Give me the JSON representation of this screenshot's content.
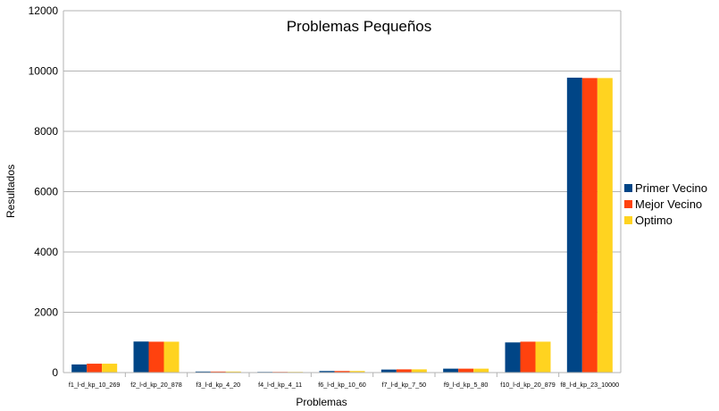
{
  "chart_data": {
    "type": "bar",
    "title": "Problemas Pequeños",
    "xlabel": "Problemas",
    "ylabel": "Resultados",
    "ylim": [
      0,
      12000
    ],
    "yticks": [
      0,
      2000,
      4000,
      6000,
      8000,
      10000,
      12000
    ],
    "grid": true,
    "legend_position": "right",
    "categories": [
      "f1_l-d_kp_10_269",
      "f2_l-d_kp_20_878",
      "f3_l-d_kp_4_20",
      "f4_l-d_kp_4_11",
      "f6_l-d_kp_10_60",
      "f7_l-d_kp_7_50",
      "f9_l-d_kp_5_80",
      "f10_l-d_kp_20_879",
      "f8_l-d_kp_23_10000"
    ],
    "series": [
      {
        "name": "Primer Vecino",
        "color": "#004586",
        "values": [
          270,
          1030,
          35,
          23,
          52,
          100,
          130,
          1000,
          9780
        ]
      },
      {
        "name": "Mejor Vecino",
        "color": "#ff420e",
        "values": [
          295,
          1024,
          35,
          23,
          52,
          107,
          130,
          1025,
          9767
        ]
      },
      {
        "name": "Optimo",
        "color": "#ffd320",
        "values": [
          295,
          1024,
          35,
          23,
          52,
          107,
          130,
          1025,
          9767
        ]
      }
    ]
  }
}
